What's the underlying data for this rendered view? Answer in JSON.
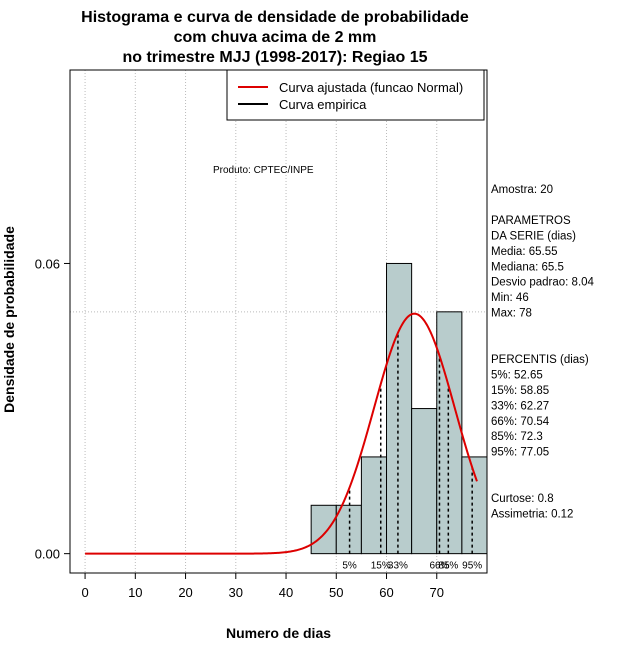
{
  "chart_data": {
    "type": "bar",
    "title_lines": [
      "Histograma e curva de densidade de probabilidade",
      "com chuva acima de 2 mm",
      "no trimestre MJJ (1998-2017): Regiao 15"
    ],
    "xlabel": "Numero de dias",
    "ylabel": "Densidade de probabilidade",
    "xlim": [
      -3,
      80
    ],
    "ylim": [
      -0.004,
      0.1
    ],
    "x_ticks": [
      0,
      10,
      20,
      30,
      40,
      50,
      60,
      70
    ],
    "y_ticks": [
      0.0,
      0.06
    ],
    "y_tick_labels": [
      "0.00",
      "0.06"
    ],
    "bins": [
      {
        "start": 45,
        "end": 50,
        "density": 0.01
      },
      {
        "start": 50,
        "end": 55,
        "density": 0.01
      },
      {
        "start": 55,
        "end": 60,
        "density": 0.02
      },
      {
        "start": 60,
        "end": 65,
        "density": 0.06
      },
      {
        "start": 65,
        "end": 70,
        "density": 0.03
      },
      {
        "start": 70,
        "end": 75,
        "density": 0.05
      },
      {
        "start": 75,
        "end": 80,
        "density": 0.02
      }
    ],
    "normal_curve": {
      "mean": 65.55,
      "sd": 8.04,
      "x_from": 0,
      "x_to": 78
    },
    "grid_lines_x": [
      0,
      10,
      20,
      30,
      40,
      50,
      60,
      70,
      80
    ],
    "grid_lines_y": [
      0.05,
      0.1
    ],
    "percentile_lines": [
      {
        "label": "5%",
        "x": 52.65
      },
      {
        "label": "15%",
        "x": 58.85
      },
      {
        "label": "33%",
        "x": 62.27
      },
      {
        "label": "66%",
        "x": 70.54
      },
      {
        "label": "85%",
        "x": 72.3
      },
      {
        "label": "95%",
        "x": 77.05
      }
    ],
    "legend": {
      "position": "top-right",
      "entries": [
        {
          "label": "Curva ajustada (funcao Normal)",
          "color": "#dd0000"
        },
        {
          "label": "Curva empirica",
          "color": "#000000"
        }
      ]
    },
    "annotation": "Produto: CPTEC/INPE",
    "side_panel": [
      "Amostra: 20",
      "",
      " PARAMETROS",
      "DA SERIE (dias)",
      "  Media: 65.55",
      "  Mediana: 65.5",
      "  Desvio padrao: 8.04",
      "  Min: 46",
      "  Max: 78",
      "",
      "",
      "PERCENTIS (dias)",
      "  5%: 52.65",
      "  15%: 58.85",
      "  33%: 62.27",
      "  66%: 70.54",
      "  85%: 72.3",
      "  95%: 77.05",
      "",
      "",
      "    Curtose: 0.8",
      "Assimetria: 0.12"
    ],
    "colors": {
      "bar_fill": "#b8cccc",
      "curve": "#dd0000",
      "grid": "#bbbbbb"
    }
  }
}
